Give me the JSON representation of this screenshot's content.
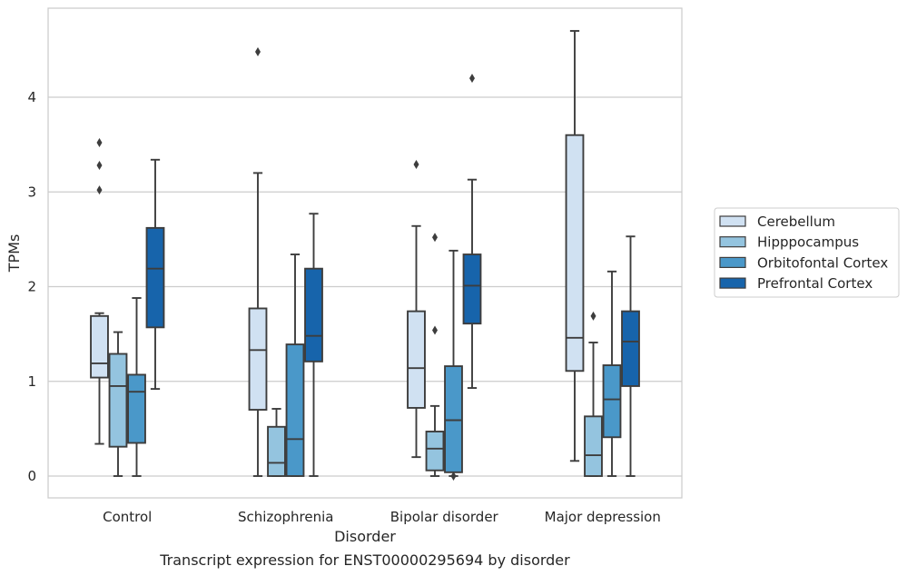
{
  "caption": "Transcript expression for ENST00000295694 by disorder",
  "chart_data": {
    "type": "box",
    "xlabel": "Disorder",
    "ylabel": "TPMs",
    "ylim": [
      -0.22,
      4.9
    ],
    "yticks": [
      0,
      1,
      2,
      3,
      4
    ],
    "grid": "horizontal",
    "legend_position": "right",
    "categories": [
      "Control",
      "Schizophrenia",
      "Bipolar disorder",
      "Major depression"
    ],
    "series": [
      {
        "name": "Cerebellum",
        "color": "#d0e1f2",
        "boxes": [
          {
            "whislo": 0.34,
            "q1": 1.04,
            "med": 1.19,
            "q3": 1.69,
            "whishi": 1.72,
            "fliers": [
              3.02,
              3.28,
              3.52
            ]
          },
          {
            "whislo": 0.0,
            "q1": 0.7,
            "med": 1.33,
            "q3": 1.77,
            "whishi": 3.2,
            "fliers": [
              4.48
            ]
          },
          {
            "whislo": 0.2,
            "q1": 0.72,
            "med": 1.14,
            "q3": 1.74,
            "whishi": 2.64,
            "fliers": [
              3.29
            ]
          },
          {
            "whislo": 0.16,
            "q1": 1.11,
            "med": 1.46,
            "q3": 3.6,
            "whishi": 4.7,
            "fliers": []
          }
        ]
      },
      {
        "name": "Hipppocampus",
        "color": "#94c4df",
        "boxes": [
          {
            "whislo": 0.0,
            "q1": 0.31,
            "med": 0.95,
            "q3": 1.29,
            "whishi": 1.52,
            "fliers": []
          },
          {
            "whislo": 0.0,
            "q1": 0.0,
            "med": 0.14,
            "q3": 0.52,
            "whishi": 0.71,
            "fliers": []
          },
          {
            "whislo": 0.0,
            "q1": 0.06,
            "med": 0.29,
            "q3": 0.47,
            "whishi": 0.74,
            "fliers": [
              1.54,
              2.52
            ]
          },
          {
            "whislo": 0.0,
            "q1": 0.0,
            "med": 0.22,
            "q3": 0.63,
            "whishi": 1.41,
            "fliers": [
              1.69
            ]
          }
        ]
      },
      {
        "name": "Orbitofontal Cortex",
        "color": "#4a98c9",
        "boxes": [
          {
            "whislo": 0.0,
            "q1": 0.35,
            "med": 0.89,
            "q3": 1.07,
            "whishi": 1.88,
            "fliers": []
          },
          {
            "whislo": 0.0,
            "q1": 0.0,
            "med": 0.39,
            "q3": 1.39,
            "whishi": 2.34,
            "fliers": []
          },
          {
            "whislo": 0.0,
            "q1": 0.04,
            "med": 0.59,
            "q3": 1.16,
            "whishi": 2.38,
            "fliers": [
              0.0
            ]
          },
          {
            "whislo": 0.0,
            "q1": 0.41,
            "med": 0.81,
            "q3": 1.17,
            "whishi": 2.16,
            "fliers": []
          }
        ]
      },
      {
        "name": "Prefrontal Cortex",
        "color": "#1764ab",
        "boxes": [
          {
            "whislo": 0.92,
            "q1": 1.57,
            "med": 2.19,
            "q3": 2.62,
            "whishi": 3.34,
            "fliers": []
          },
          {
            "whislo": 0.0,
            "q1": 1.21,
            "med": 1.48,
            "q3": 2.19,
            "whishi": 2.77,
            "fliers": []
          },
          {
            "whislo": 0.93,
            "q1": 1.61,
            "med": 2.01,
            "q3": 2.34,
            "whishi": 3.13,
            "fliers": [
              4.2
            ]
          },
          {
            "whislo": 0.0,
            "q1": 0.95,
            "med": 1.42,
            "q3": 1.74,
            "whishi": 2.53,
            "fliers": []
          }
        ]
      }
    ]
  }
}
